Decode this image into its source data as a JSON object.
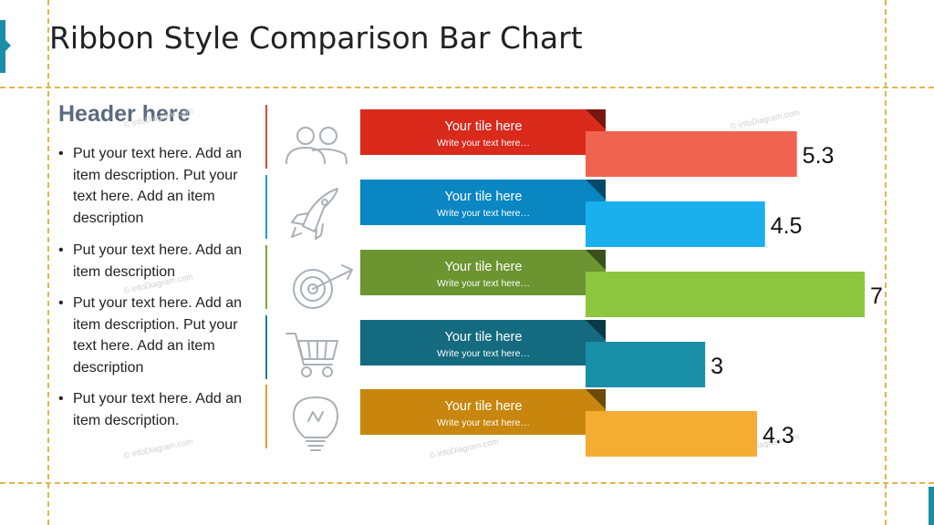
{
  "title": "Ribbon Style Comparison Bar Chart",
  "left_panel": {
    "header": "Header here",
    "bullets": [
      "Put your text here. Add an item description. Put your text here. Add an item description",
      "Put your text here. Add an item description",
      "Put your text here. Add an item description. Put your text here. Add an item description",
      "Put your text here. Add an item description."
    ]
  },
  "watermark": "© infoDiagram.com",
  "chart_data": {
    "type": "bar",
    "orientation": "horizontal",
    "max_value": 7,
    "rows": [
      {
        "icon": "people-icon",
        "tile_title": "Your tile here",
        "tile_subtitle": "Write your text here…",
        "value": 5.3,
        "label": "5.3",
        "ribbon_color": "#d92a1c",
        "bar_color": "#ef6350",
        "divider_color": "#d94a3c"
      },
      {
        "icon": "rocket-icon",
        "tile_title": "Your tile here",
        "tile_subtitle": "Write your text here…",
        "value": 4.5,
        "label": "4.5",
        "ribbon_color": "#0a86c2",
        "bar_color": "#1ab0ee",
        "divider_color": "#1a9ad6"
      },
      {
        "icon": "target-icon",
        "tile_title": "Your tile here",
        "tile_subtitle": "Write your text here…",
        "value": 7,
        "label": "7",
        "ribbon_color": "#6c9431",
        "bar_color": "#8cc63f",
        "divider_color": "#7aaa38"
      },
      {
        "icon": "shopping-cart-icon",
        "tile_title": "Your tile here",
        "tile_subtitle": "Write your text here…",
        "value": 3,
        "label": "3",
        "ribbon_color": "#146a7e",
        "bar_color": "#1a8fa8",
        "divider_color": "#1a7f95"
      },
      {
        "icon": "lightbulb-icon",
        "tile_title": "Your tile here",
        "tile_subtitle": "Write your text here…",
        "value": 4.3,
        "label": "4.3",
        "ribbon_color": "#c8860e",
        "bar_color": "#f4ac33",
        "divider_color": "#e0a030"
      }
    ]
  }
}
